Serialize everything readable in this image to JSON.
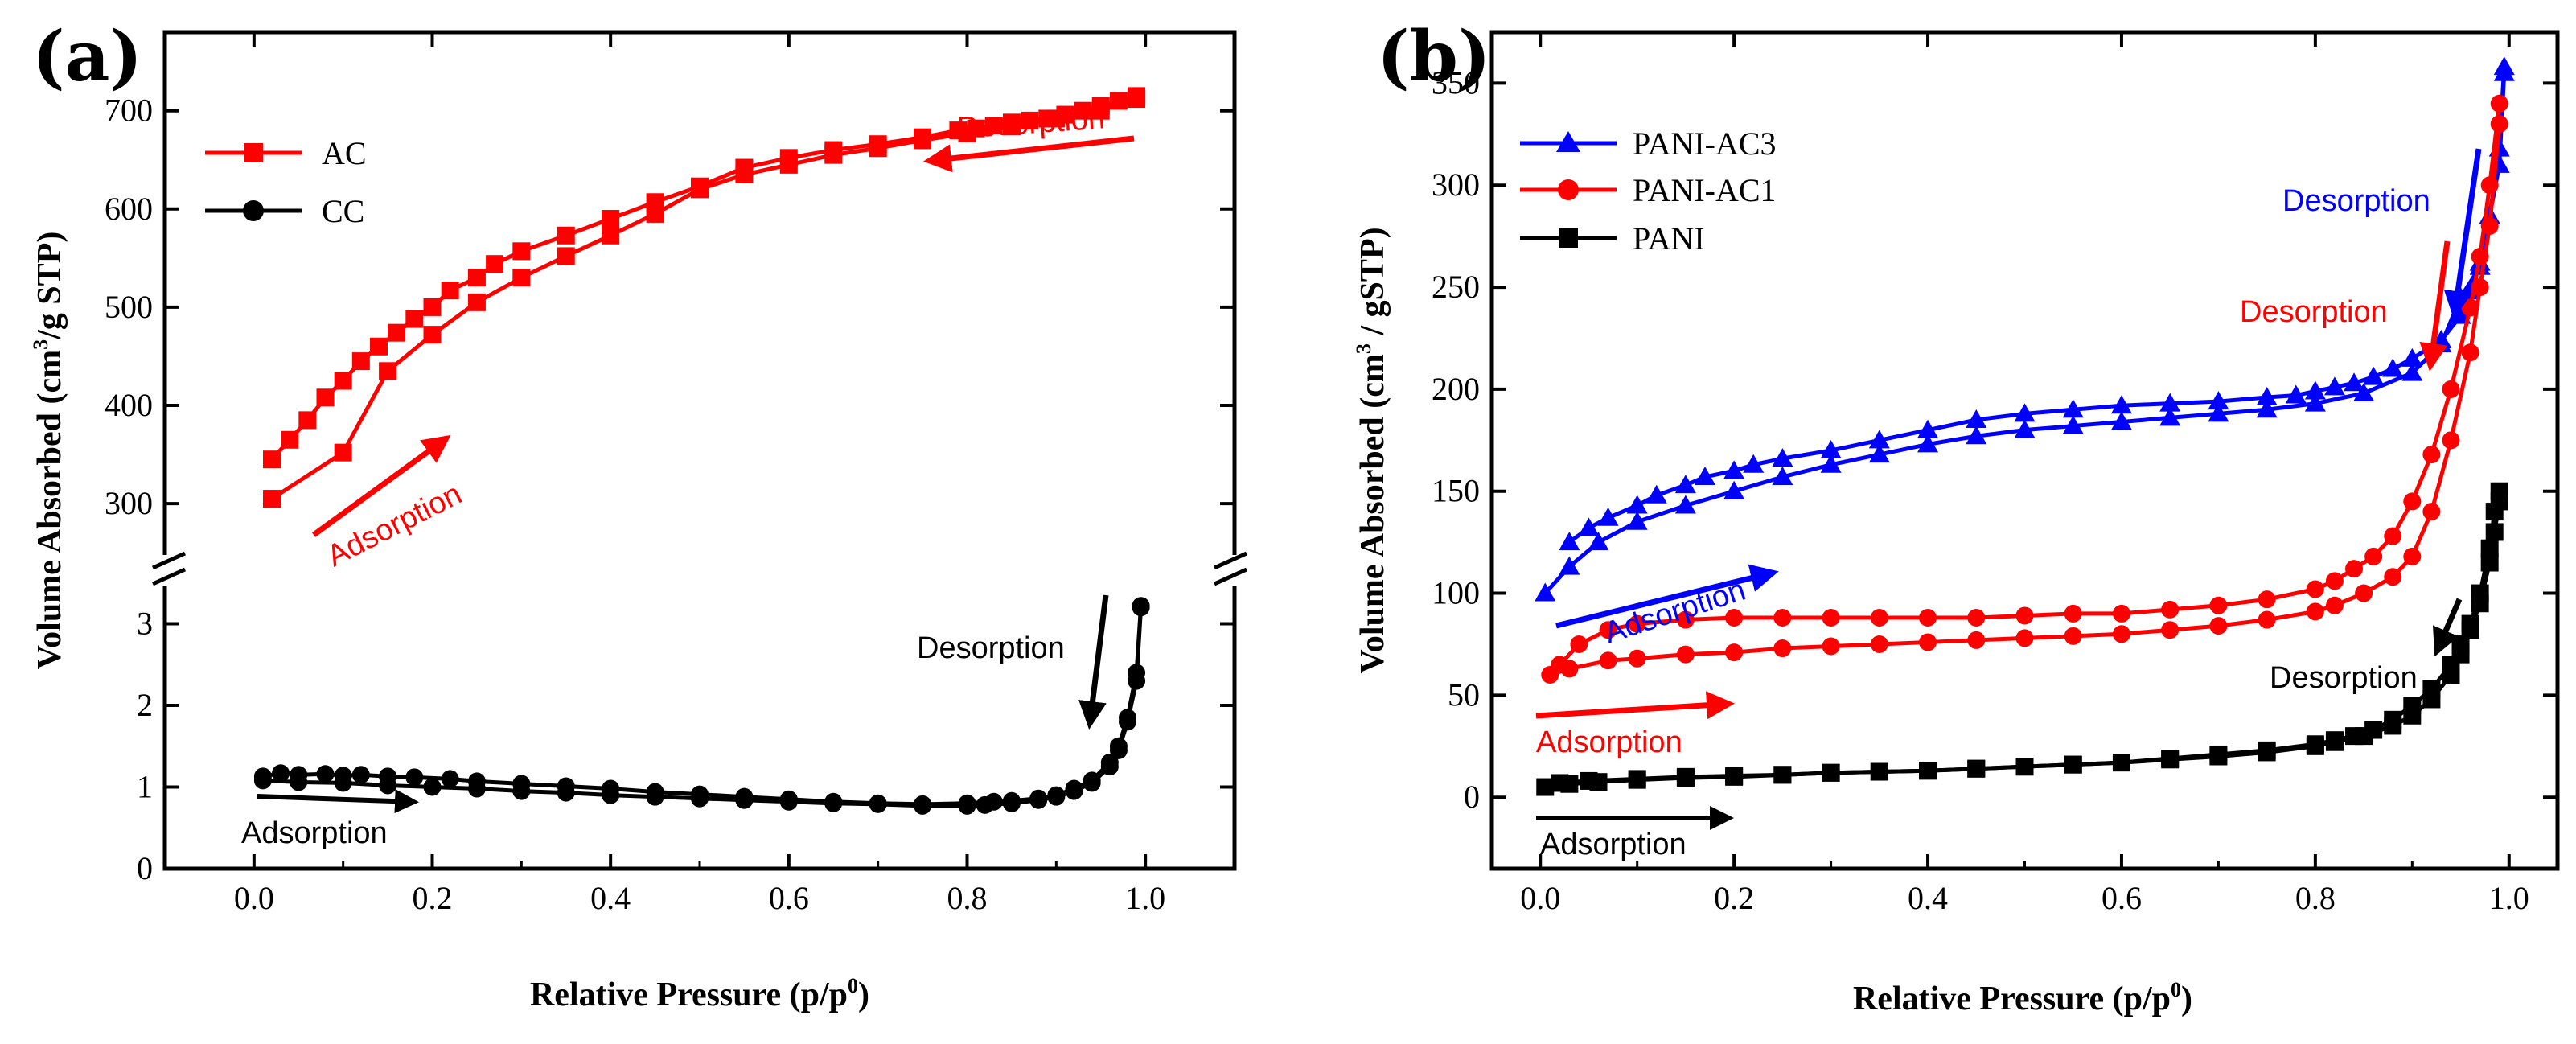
{
  "chart_data": [
    {
      "panel_label": "(a)",
      "type": "line",
      "xlabel_main": "Relative Pressure (p/p",
      "xlabel_sup": "0",
      "xlabel_end": ")",
      "ylabel_main": "Volume Absorbed (cm",
      "ylabel_sup": "3",
      "ylabel_end": "/g STP)",
      "xlim": [
        -0.1,
        1.1
      ],
      "x_ticks": [
        0.0,
        0.2,
        0.4,
        0.6,
        0.8,
        1.0
      ],
      "x_tick_labels": [
        "0.0",
        "0.2",
        "0.4",
        "0.6",
        "0.8",
        "1.0"
      ],
      "y_upper": {
        "range": [
          260,
          780
        ],
        "ticks": [
          300,
          400,
          500,
          600,
          700
        ],
        "tick_labels": [
          "300",
          "400",
          "500",
          "600",
          "700"
        ]
      },
      "y_lower": {
        "range": [
          0,
          3.35
        ],
        "ticks": [
          0,
          1,
          2,
          3
        ],
        "tick_labels": [
          "0",
          "1",
          "2",
          "3"
        ]
      },
      "legend": [
        "AC",
        "CC"
      ],
      "series": [
        {
          "name": "AC",
          "color": "#ff0000",
          "marker": "square",
          "segment": "upper",
          "adsorption": {
            "x": [
              0.02,
              0.1,
              0.15,
              0.2,
              0.25,
              0.3,
              0.35,
              0.4,
              0.45,
              0.5,
              0.55,
              0.6,
              0.65,
              0.7,
              0.75,
              0.8,
              0.85,
              0.9,
              0.95,
              0.99
            ],
            "y": [
              305,
              352,
              435,
              472,
              505,
              530,
              552,
              573,
              595,
              620,
              635,
              645,
              655,
              662,
              670,
              677,
              684,
              692,
              700,
              712
            ]
          },
          "desorption": {
            "x": [
              0.99,
              0.97,
              0.95,
              0.93,
              0.91,
              0.89,
              0.87,
              0.85,
              0.83,
              0.81,
              0.79,
              0.75,
              0.7,
              0.65,
              0.6,
              0.55,
              0.5,
              0.45,
              0.4,
              0.35,
              0.3,
              0.27,
              0.25,
              0.22,
              0.2,
              0.18,
              0.16,
              0.14,
              0.12,
              0.1,
              0.08,
              0.06,
              0.04,
              0.02
            ],
            "y": [
              715,
              710,
              705,
              700,
              696,
              692,
              690,
              688,
              685,
              682,
              680,
              673,
              666,
              660,
              652,
              642,
              623,
              607,
              590,
              573,
              557,
              544,
              530,
              517,
              500,
              488,
              474,
              460,
              445,
              425,
              408,
              385,
              365,
              345
            ]
          }
        },
        {
          "name": "CC",
          "color": "#000000",
          "marker": "circle",
          "segment": "lower",
          "adsorption": {
            "x": [
              0.01,
              0.05,
              0.1,
              0.15,
              0.2,
              0.25,
              0.3,
              0.35,
              0.4,
              0.45,
              0.5,
              0.55,
              0.6,
              0.65,
              0.7,
              0.75,
              0.8,
              0.82,
              0.85,
              0.88,
              0.9,
              0.92,
              0.94,
              0.96,
              0.97,
              0.98,
              0.99,
              0.995
            ],
            "y": [
              1.08,
              1.06,
              1.05,
              1.02,
              1.0,
              0.98,
              0.95,
              0.93,
              0.9,
              0.88,
              0.86,
              0.84,
              0.82,
              0.8,
              0.79,
              0.77,
              0.77,
              0.78,
              0.8,
              0.84,
              0.88,
              0.95,
              1.05,
              1.25,
              1.45,
              1.8,
              2.3,
              3.2
            ]
          },
          "desorption": {
            "x": [
              0.995,
              0.99,
              0.98,
              0.97,
              0.96,
              0.94,
              0.92,
              0.9,
              0.88,
              0.85,
              0.83,
              0.8,
              0.75,
              0.7,
              0.65,
              0.6,
              0.55,
              0.5,
              0.45,
              0.4,
              0.35,
              0.3,
              0.25,
              0.22,
              0.18,
              0.15,
              0.12,
              0.1,
              0.08,
              0.05,
              0.03,
              0.01
            ],
            "y": [
              3.22,
              2.4,
              1.85,
              1.5,
              1.3,
              1.08,
              0.98,
              0.9,
              0.86,
              0.83,
              0.82,
              0.8,
              0.79,
              0.8,
              0.82,
              0.85,
              0.88,
              0.91,
              0.94,
              0.98,
              1.01,
              1.04,
              1.07,
              1.1,
              1.12,
              1.13,
              1.15,
              1.14,
              1.16,
              1.15,
              1.17,
              1.13
            ]
          }
        }
      ],
      "annotations": [
        {
          "text": "Desorption",
          "color": "#ff0000"
        },
        {
          "text": "Adsorption",
          "color": "#ff0000"
        },
        {
          "text": "Desorption",
          "color": "#000000"
        },
        {
          "text": "Adsorption",
          "color": "#000000"
        }
      ]
    },
    {
      "panel_label": "(b)",
      "type": "line",
      "xlabel_main": "Relative Pressure (p/p",
      "xlabel_sup": "0",
      "xlabel_end": ")",
      "ylabel_main": "Volume Absorbed (cm",
      "ylabel_sup": "3",
      "ylabel_end": " / gSTP)",
      "xlim": [
        -0.05,
        1.05
      ],
      "ylim": [
        -35,
        375
      ],
      "x_ticks": [
        0.0,
        0.2,
        0.4,
        0.6,
        0.8,
        1.0
      ],
      "x_tick_labels": [
        "0.0",
        "0.2",
        "0.4",
        "0.6",
        "0.8",
        "1.0"
      ],
      "y_ticks": [
        0,
        50,
        100,
        150,
        200,
        250,
        300,
        350
      ],
      "y_tick_labels": [
        "0",
        "50",
        "100",
        "150",
        "200",
        "250",
        "300",
        "350"
      ],
      "legend": [
        "PANI-AC3",
        "PANI-AC1",
        "PANI"
      ],
      "series": [
        {
          "name": "PANI-AC3",
          "color": "#0000ff",
          "marker": "triangle",
          "adsorption": {
            "x": [
              0.005,
              0.03,
              0.06,
              0.1,
              0.15,
              0.2,
              0.25,
              0.3,
              0.35,
              0.4,
              0.45,
              0.5,
              0.55,
              0.6,
              0.65,
              0.7,
              0.75,
              0.8,
              0.85,
              0.9,
              0.93,
              0.95,
              0.97,
              0.98,
              0.99,
              0.995
            ],
            "y": [
              100,
              113,
              125,
              135,
              143,
              150,
              157,
              163,
              168,
              173,
              177,
              180,
              182,
              184,
              186,
              188,
              190,
              193,
              198,
              208,
              222,
              245,
              260,
              285,
              310,
              355
            ]
          },
          "desorption": {
            "x": [
              0.995,
              0.99,
              0.98,
              0.97,
              0.96,
              0.95,
              0.93,
              0.9,
              0.88,
              0.86,
              0.84,
              0.82,
              0.8,
              0.78,
              0.75,
              0.7,
              0.65,
              0.6,
              0.55,
              0.5,
              0.45,
              0.4,
              0.35,
              0.3,
              0.25,
              0.22,
              0.2,
              0.17,
              0.15,
              0.12,
              0.1,
              0.07,
              0.05,
              0.03
            ],
            "y": [
              358,
              318,
              285,
              262,
              248,
              236,
              224,
              215,
              210,
              206,
              203,
              201,
              199,
              197,
              196,
              194,
              193,
              192,
              190,
              188,
              185,
              180,
              175,
              170,
              166,
              163,
              160,
              157,
              153,
              148,
              143,
              137,
              132,
              125
            ]
          }
        },
        {
          "name": "PANI-AC1",
          "color": "#ff0000",
          "marker": "circle",
          "adsorption": {
            "x": [
              0.01,
              0.03,
              0.07,
              0.1,
              0.15,
              0.2,
              0.25,
              0.3,
              0.35,
              0.4,
              0.45,
              0.5,
              0.55,
              0.6,
              0.65,
              0.7,
              0.75,
              0.8,
              0.82,
              0.85,
              0.88,
              0.9,
              0.92,
              0.94,
              0.96,
              0.97,
              0.98,
              0.99
            ],
            "y": [
              60,
              63,
              67,
              68,
              70,
              71,
              73,
              74,
              75,
              76,
              77,
              78,
              79,
              80,
              82,
              84,
              87,
              91,
              94,
              100,
              108,
              118,
              140,
              175,
              218,
              250,
              280,
              330
            ]
          },
          "desorption": {
            "x": [
              0.99,
              0.98,
              0.97,
              0.96,
              0.94,
              0.92,
              0.9,
              0.88,
              0.86,
              0.84,
              0.82,
              0.8,
              0.75,
              0.7,
              0.65,
              0.6,
              0.55,
              0.5,
              0.45,
              0.4,
              0.35,
              0.3,
              0.25,
              0.2,
              0.15,
              0.1,
              0.07,
              0.04,
              0.02
            ],
            "y": [
              340,
              300,
              265,
              240,
              200,
              168,
              145,
              128,
              118,
              112,
              106,
              102,
              97,
              94,
              92,
              90,
              90,
              89,
              88,
              88,
              88,
              88,
              88,
              88,
              87,
              85,
              82,
              75,
              65
            ]
          }
        },
        {
          "name": "PANI",
          "color": "#000000",
          "marker": "square",
          "adsorption": {
            "x": [
              0.005,
              0.03,
              0.06,
              0.1,
              0.15,
              0.2,
              0.25,
              0.3,
              0.35,
              0.4,
              0.45,
              0.5,
              0.55,
              0.6,
              0.65,
              0.7,
              0.75,
              0.8,
              0.82,
              0.85,
              0.88,
              0.9,
              0.92,
              0.94,
              0.95,
              0.96,
              0.97,
              0.98,
              0.985,
              0.99
            ],
            "y": [
              5,
              6.5,
              7.5,
              8.5,
              9.5,
              10,
              11,
              12,
              12.5,
              13,
              14,
              15,
              16,
              17,
              18.5,
              20,
              22,
              25,
              27,
              30,
              35,
              40,
              48,
              60,
              70,
              82,
              95,
              115,
              130,
              145
            ]
          },
          "desorption": {
            "x": [
              0.99,
              0.985,
              0.98,
              0.97,
              0.96,
              0.95,
              0.94,
              0.92,
              0.9,
              0.88,
              0.86,
              0.84,
              0.82,
              0.8,
              0.75,
              0.7,
              0.65,
              0.6,
              0.55,
              0.5,
              0.45,
              0.4,
              0.35,
              0.3,
              0.25,
              0.2,
              0.15,
              0.1,
              0.05,
              0.02
            ],
            "y": [
              150,
              140,
              122,
              100,
              85,
              75,
              65,
              53,
              45,
              38,
              33,
              30,
              28,
              26,
              23,
              21,
              19,
              17,
              16,
              15,
              14,
              13,
              12.5,
              12,
              11,
              10.5,
              10,
              9,
              8,
              7
            ]
          }
        }
      ],
      "annotations": [
        {
          "text": "Desorption",
          "color": "#0000ff"
        },
        {
          "text": "Desorption",
          "color": "#ff0000"
        },
        {
          "text": "Desorption",
          "color": "#000000"
        },
        {
          "text": "Adsorption",
          "color": "#0000ff"
        },
        {
          "text": "Adsorption",
          "color": "#ff0000"
        },
        {
          "text": "Adsorption",
          "color": "#000000"
        }
      ]
    }
  ]
}
